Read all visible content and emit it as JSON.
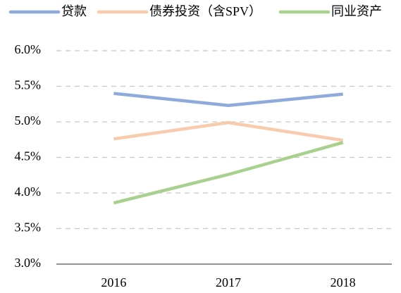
{
  "chart_data": {
    "type": "line",
    "categories": [
      "2016",
      "2017",
      "2018"
    ],
    "series": [
      {
        "name": "贷款",
        "color": "#8eaadb",
        "values": [
          5.4,
          5.23,
          5.39
        ]
      },
      {
        "name": "债券投资（含SPV）",
        "color": "#f8cbad",
        "values": [
          4.76,
          4.99,
          4.74
        ]
      },
      {
        "name": "同业资产",
        "color": "#a9d18e",
        "values": [
          3.86,
          4.26,
          4.71
        ]
      }
    ],
    "ylim": [
      3,
      6
    ],
    "yticks": [
      {
        "value": 3,
        "label": "3.0%"
      },
      {
        "value": 3.5,
        "label": "3.5%"
      },
      {
        "value": 4,
        "label": "4.0%"
      },
      {
        "value": 4.5,
        "label": "4.5%"
      },
      {
        "value": 5,
        "label": "5.0%"
      },
      {
        "value": 5.5,
        "label": "5.5%"
      },
      {
        "value": 6,
        "label": "6.0%"
      }
    ],
    "grid": true,
    "legend": "top"
  }
}
